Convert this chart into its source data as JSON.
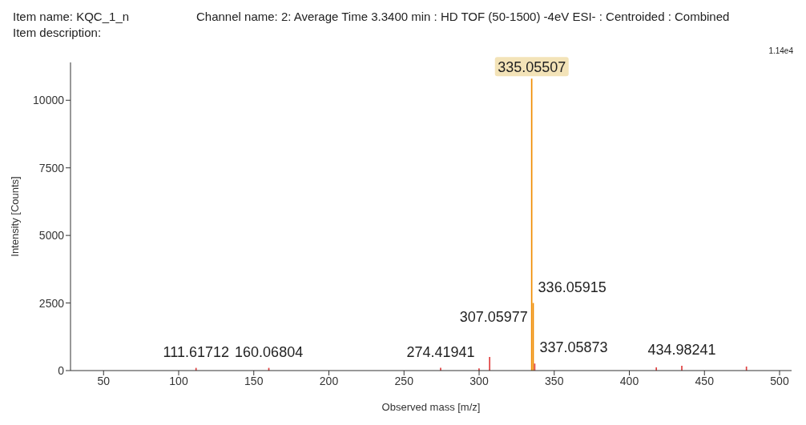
{
  "chart_data": {
    "type": "bar",
    "title": "Channel name: 2: Average Time 3.3400 min : HD TOF (50-1500) -4eV ESI- : Centroided : Combined",
    "xlabel": "Observed mass [m/z]",
    "ylabel": "Intensity [Counts]",
    "x": [
      111.61712,
      160.06804,
      274.41941,
      300.0,
      307.05977,
      335.05507,
      336.05915,
      337.05873,
      418.0,
      434.98241,
      478.0
    ],
    "values": [
      100,
      100,
      100,
      80,
      500,
      10800,
      2500,
      260,
      120,
      180,
      150
    ],
    "colors": [
      "#e04040",
      "#e04040",
      "#e04040",
      "#e04040",
      "#e04040",
      "#f08c00",
      "#f08c00",
      "#e04040",
      "#e04040",
      "#e04040",
      "#e04040"
    ],
    "xlim": [
      28,
      508
    ],
    "xticks": [
      50,
      100,
      150,
      200,
      250,
      300,
      350,
      400,
      450,
      500
    ],
    "ylim": [
      0,
      11400
    ],
    "yticks": [
      0,
      2500,
      5000,
      7500,
      10000
    ],
    "grid": false,
    "annotations": [
      "Item name: KQC_1_n",
      "Item description:",
      "1.14e4",
      {
        "text": "111.61712",
        "x": 111.61712,
        "y": 100
      },
      {
        "text": "160.06804",
        "x": 160.06804,
        "y": 100
      },
      {
        "text": "274.41941",
        "x": 274.41941,
        "y": 100
      },
      {
        "text": "307.05977",
        "x": 307.05977,
        "y": 500
      },
      {
        "text": "335.05507",
        "x": 335.05507,
        "y": 10800
      },
      {
        "text": "336.05915",
        "x": 336.05915,
        "y": 2500
      },
      {
        "text": "337.05873",
        "x": 337.05873,
        "y": 260
      },
      {
        "text": "434.98241",
        "x": 434.98241,
        "y": 180
      }
    ]
  }
}
